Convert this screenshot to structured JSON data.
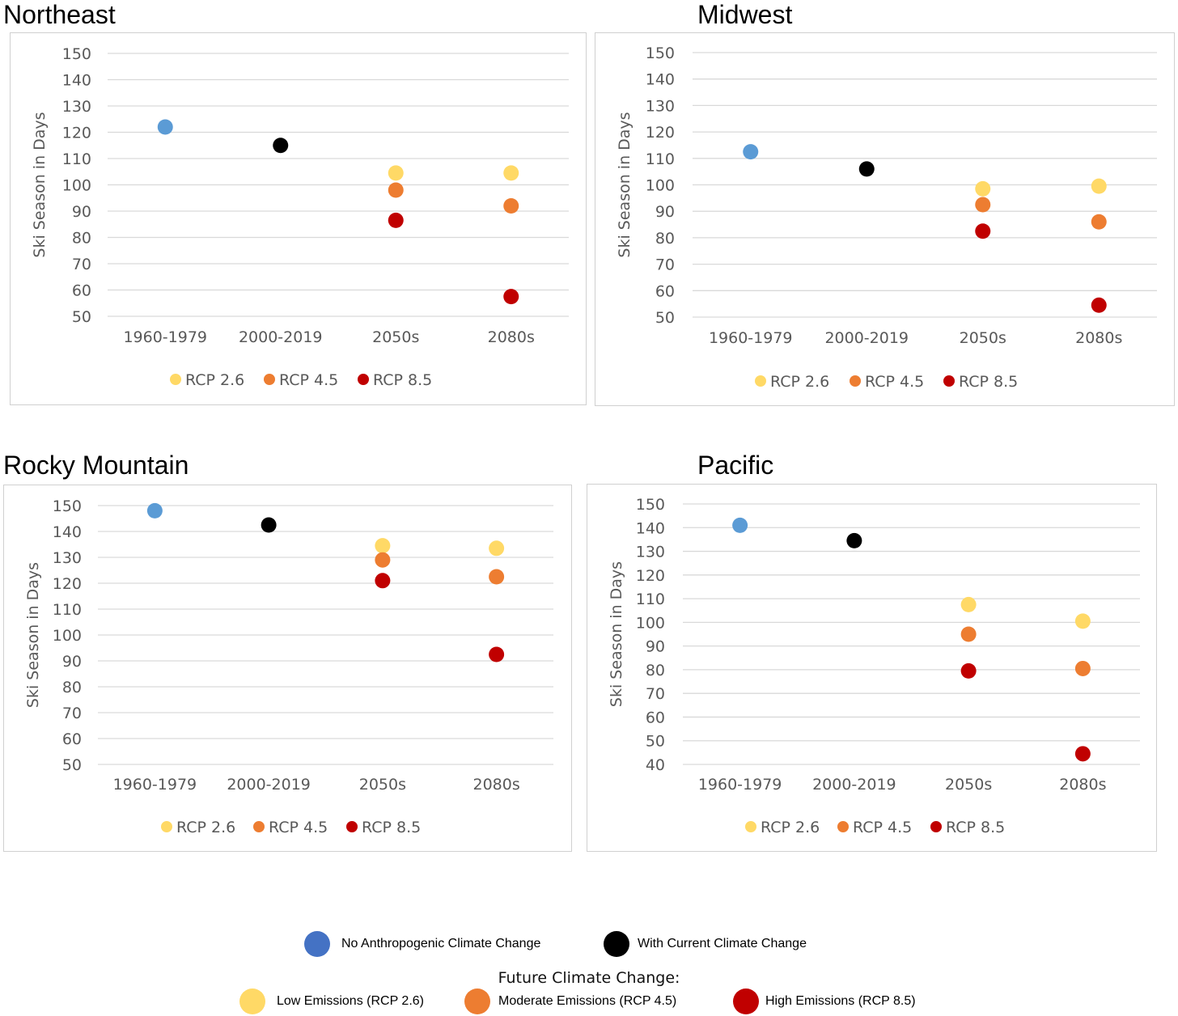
{
  "colors": {
    "historical": "#5b9bd5",
    "current": "#000000",
    "rcp26": "#ffd966",
    "rcp45": "#ed7d31",
    "rcp85": "#c00000",
    "legend_no_change": "#4472c4",
    "gridline": "#d9d9d9",
    "axis_text": "#595959"
  },
  "chart_data": [
    {
      "type": "scatter",
      "title": "Northeast",
      "ylabel": "Ski Season in Days",
      "categories": [
        "1960-1979",
        "2000-2019",
        "2050s",
        "2080s"
      ],
      "yticks": [
        50,
        60,
        70,
        80,
        90,
        100,
        110,
        120,
        130,
        140,
        150
      ],
      "ylim": [
        50,
        150
      ],
      "points": [
        {
          "category": "1960-1979",
          "value": 122,
          "kind": "historical"
        },
        {
          "category": "2000-2019",
          "value": 115,
          "kind": "current"
        },
        {
          "category": "2050s",
          "value": 104.5,
          "kind": "rcp26"
        },
        {
          "category": "2050s",
          "value": 98,
          "kind": "rcp45"
        },
        {
          "category": "2050s",
          "value": 86.5,
          "kind": "rcp85"
        },
        {
          "category": "2080s",
          "value": 104.5,
          "kind": "rcp26"
        },
        {
          "category": "2080s",
          "value": 92,
          "kind": "rcp45"
        },
        {
          "category": "2080s",
          "value": 57.5,
          "kind": "rcp85"
        }
      ],
      "legend": [
        {
          "label": "RCP 2.6",
          "kind": "rcp26"
        },
        {
          "label": "RCP 4.5",
          "kind": "rcp45"
        },
        {
          "label": "RCP 8.5",
          "kind": "rcp85"
        }
      ]
    },
    {
      "type": "scatter",
      "title": "Midwest",
      "ylabel": "Ski Season in Days",
      "categories": [
        "1960-1979",
        "2000-2019",
        "2050s",
        "2080s"
      ],
      "yticks": [
        50,
        60,
        70,
        80,
        90,
        100,
        110,
        120,
        130,
        140,
        150
      ],
      "ylim": [
        50,
        150
      ],
      "points": [
        {
          "category": "1960-1979",
          "value": 112.5,
          "kind": "historical"
        },
        {
          "category": "2000-2019",
          "value": 106,
          "kind": "current"
        },
        {
          "category": "2050s",
          "value": 98.5,
          "kind": "rcp26"
        },
        {
          "category": "2050s",
          "value": 92.5,
          "kind": "rcp45"
        },
        {
          "category": "2050s",
          "value": 82.5,
          "kind": "rcp85"
        },
        {
          "category": "2080s",
          "value": 99.5,
          "kind": "rcp26"
        },
        {
          "category": "2080s",
          "value": 86,
          "kind": "rcp45"
        },
        {
          "category": "2080s",
          "value": 54.5,
          "kind": "rcp85"
        }
      ],
      "legend": [
        {
          "label": "RCP 2.6",
          "kind": "rcp26"
        },
        {
          "label": "RCP 4.5",
          "kind": "rcp45"
        },
        {
          "label": "RCP 8.5",
          "kind": "rcp85"
        }
      ]
    },
    {
      "type": "scatter",
      "title": "Rocky Mountain",
      "ylabel": "Ski Season in Days",
      "categories": [
        "1960-1979",
        "2000-2019",
        "2050s",
        "2080s"
      ],
      "yticks": [
        50,
        60,
        70,
        80,
        90,
        100,
        110,
        120,
        130,
        140,
        150
      ],
      "ylim": [
        50,
        150
      ],
      "points": [
        {
          "category": "1960-1979",
          "value": 148,
          "kind": "historical"
        },
        {
          "category": "2000-2019",
          "value": 142.5,
          "kind": "current"
        },
        {
          "category": "2050s",
          "value": 134.5,
          "kind": "rcp26"
        },
        {
          "category": "2050s",
          "value": 129,
          "kind": "rcp45"
        },
        {
          "category": "2050s",
          "value": 121,
          "kind": "rcp85"
        },
        {
          "category": "2080s",
          "value": 133.5,
          "kind": "rcp26"
        },
        {
          "category": "2080s",
          "value": 122.5,
          "kind": "rcp45"
        },
        {
          "category": "2080s",
          "value": 92.5,
          "kind": "rcp85"
        }
      ],
      "legend": [
        {
          "label": "RCP 2.6",
          "kind": "rcp26"
        },
        {
          "label": "RCP 4.5",
          "kind": "rcp45"
        },
        {
          "label": "RCP 8.5",
          "kind": "rcp85"
        }
      ]
    },
    {
      "type": "scatter",
      "title": "Pacific",
      "ylabel": "Ski Season in Days",
      "categories": [
        "1960-1979",
        "2000-2019",
        "2050s",
        "2080s"
      ],
      "yticks": [
        40,
        50,
        60,
        70,
        80,
        90,
        100,
        110,
        120,
        130,
        140,
        150
      ],
      "ylim": [
        40,
        150
      ],
      "points": [
        {
          "category": "1960-1979",
          "value": 141,
          "kind": "historical"
        },
        {
          "category": "2000-2019",
          "value": 134.5,
          "kind": "current"
        },
        {
          "category": "2050s",
          "value": 107.5,
          "kind": "rcp26"
        },
        {
          "category": "2050s",
          "value": 95,
          "kind": "rcp45"
        },
        {
          "category": "2050s",
          "value": 79.5,
          "kind": "rcp85"
        },
        {
          "category": "2080s",
          "value": 100.5,
          "kind": "rcp26"
        },
        {
          "category": "2080s",
          "value": 80.5,
          "kind": "rcp45"
        },
        {
          "category": "2080s",
          "value": 44.5,
          "kind": "rcp85"
        }
      ],
      "legend": [
        {
          "label": "RCP 2.6",
          "kind": "rcp26"
        },
        {
          "label": "RCP 4.5",
          "kind": "rcp45"
        },
        {
          "label": "RCP 8.5",
          "kind": "rcp85"
        }
      ]
    }
  ],
  "bottom_legend": {
    "row1": [
      {
        "label": "No Anthropogenic Climate Change",
        "color_key": "legend_no_change"
      },
      {
        "label": "With Current Climate Change",
        "color_key": "current"
      }
    ],
    "caption": "Future Climate Change:",
    "row2": [
      {
        "label": "Low Emissions (RCP 2.6)",
        "color_key": "rcp26"
      },
      {
        "label": "Moderate Emissions (RCP 4.5)",
        "color_key": "rcp45"
      },
      {
        "label": "High Emissions (RCP 8.5)",
        "color_key": "rcp85"
      }
    ]
  }
}
